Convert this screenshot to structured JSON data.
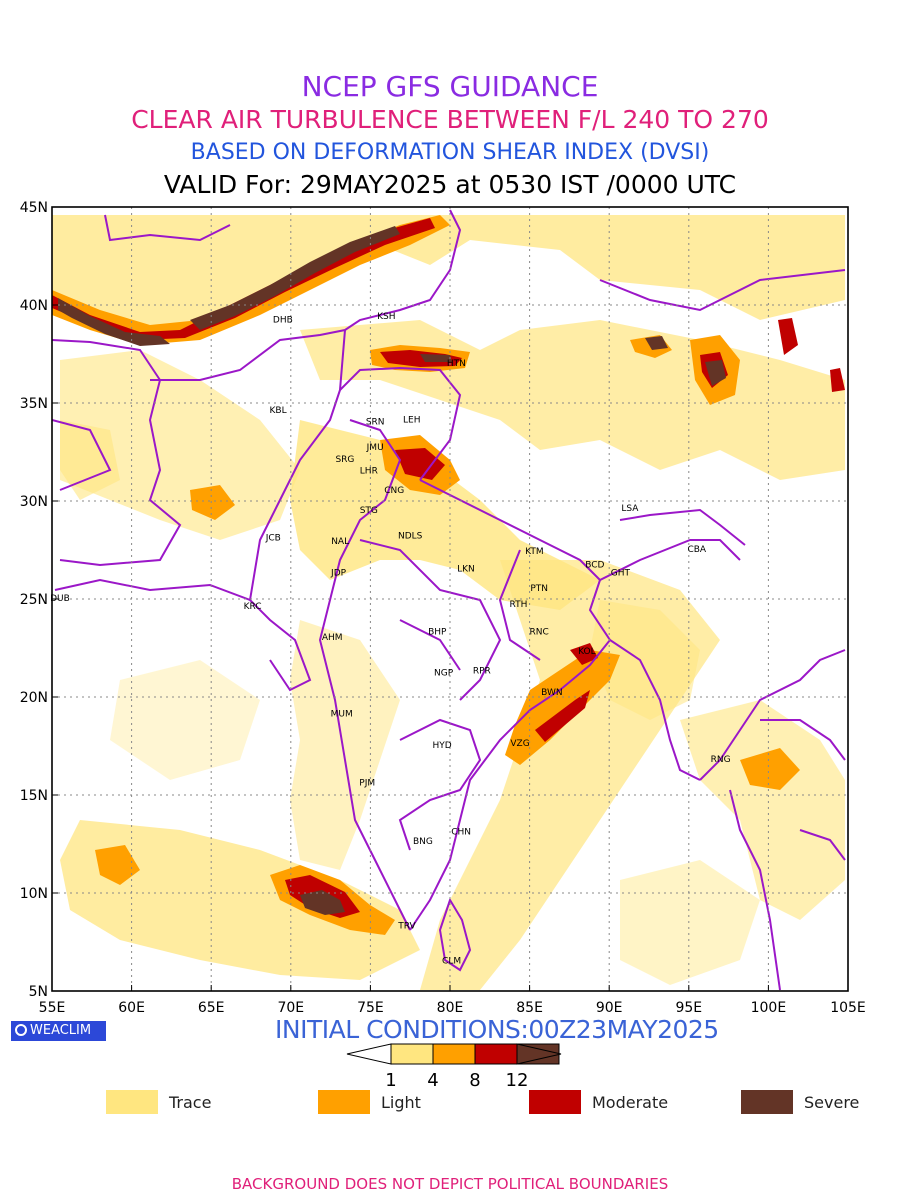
{
  "titles": {
    "line1": "NCEP GFS GUIDANCE",
    "line2": "CLEAR AIR TURBULENCE BETWEEN F/L 240 TO 270",
    "line3": "BASED ON DEFORMATION SHEAR INDEX (DVSI)",
    "line4": "VALID For: 29MAY2025 at 0530 IST /0000 UTC"
  },
  "map": {
    "lon_range": [
      55,
      105
    ],
    "lat_range": [
      5,
      45
    ],
    "x_ticks": [
      "55E",
      "60E",
      "65E",
      "70E",
      "75E",
      "80E",
      "85E",
      "90E",
      "95E",
      "100E",
      "105E"
    ],
    "y_ticks": [
      "45N",
      "40N",
      "35N",
      "30N",
      "25N",
      "20N",
      "15N",
      "10N",
      "5N"
    ],
    "grid": "dotted",
    "colors": {
      "trace": "#ffe680",
      "light": "#ffa000",
      "moderate": "#c00000",
      "severe": "#633426",
      "boundary": "#9b17c8"
    },
    "stations": [
      {
        "code": "DHB",
        "lon": 69.5,
        "lat": 39.3
      },
      {
        "code": "KSH",
        "lon": 76.0,
        "lat": 39.5
      },
      {
        "code": "HTN",
        "lon": 80.4,
        "lat": 37.1
      },
      {
        "code": "KBL",
        "lon": 69.2,
        "lat": 34.7
      },
      {
        "code": "SRN",
        "lon": 75.3,
        "lat": 34.1
      },
      {
        "code": "LEH",
        "lon": 77.6,
        "lat": 34.2
      },
      {
        "code": "JMU",
        "lon": 75.3,
        "lat": 32.8
      },
      {
        "code": "SRG",
        "lon": 73.4,
        "lat": 32.2
      },
      {
        "code": "LHR",
        "lon": 74.9,
        "lat": 31.6
      },
      {
        "code": "CNG",
        "lon": 76.5,
        "lat": 30.6
      },
      {
        "code": "LSA",
        "lon": 91.3,
        "lat": 29.7
      },
      {
        "code": "STG",
        "lon": 74.9,
        "lat": 29.6
      },
      {
        "code": "JCB",
        "lon": 68.9,
        "lat": 28.2
      },
      {
        "code": "NAL",
        "lon": 73.1,
        "lat": 28.0
      },
      {
        "code": "NDLS",
        "lon": 77.5,
        "lat": 28.3
      },
      {
        "code": "CBA",
        "lon": 95.5,
        "lat": 27.6
      },
      {
        "code": "KTM",
        "lon": 85.3,
        "lat": 27.5
      },
      {
        "code": "BCD",
        "lon": 89.1,
        "lat": 26.8
      },
      {
        "code": "LKN",
        "lon": 81.0,
        "lat": 26.6
      },
      {
        "code": "GHT",
        "lon": 90.7,
        "lat": 26.4
      },
      {
        "code": "JDP",
        "lon": 73.0,
        "lat": 26.4
      },
      {
        "code": "PTN",
        "lon": 85.6,
        "lat": 25.6
      },
      {
        "code": "DUB",
        "lon": 55.5,
        "lat": 25.1
      },
      {
        "code": "RTH",
        "lon": 84.3,
        "lat": 24.8
      },
      {
        "code": "KRC",
        "lon": 67.6,
        "lat": 24.7
      },
      {
        "code": "RNC",
        "lon": 85.6,
        "lat": 23.4
      },
      {
        "code": "AHM",
        "lon": 72.6,
        "lat": 23.1
      },
      {
        "code": "BHP",
        "lon": 79.2,
        "lat": 23.4
      },
      {
        "code": "KOL",
        "lon": 88.6,
        "lat": 22.4
      },
      {
        "code": "NGP",
        "lon": 79.6,
        "lat": 21.3
      },
      {
        "code": "RPR",
        "lon": 82.0,
        "lat": 21.4
      },
      {
        "code": "BWN",
        "lon": 86.4,
        "lat": 20.3
      },
      {
        "code": "MUM",
        "lon": 73.2,
        "lat": 19.2
      },
      {
        "code": "HYD",
        "lon": 79.5,
        "lat": 17.6
      },
      {
        "code": "VZG",
        "lon": 84.4,
        "lat": 17.7
      },
      {
        "code": "RNG",
        "lon": 97.0,
        "lat": 16.9
      },
      {
        "code": "PJM",
        "lon": 74.8,
        "lat": 15.7
      },
      {
        "code": "CHN",
        "lon": 80.7,
        "lat": 13.2
      },
      {
        "code": "BNG",
        "lon": 78.3,
        "lat": 12.7
      },
      {
        "code": "TRV",
        "lon": 77.3,
        "lat": 8.4
      },
      {
        "code": "CLM",
        "lon": 80.1,
        "lat": 6.6
      }
    ]
  },
  "brand": {
    "label": "WEACLIM"
  },
  "initial_conditions": "INITIAL CONDITIONS:00Z23MAY2025",
  "colorbar": {
    "ticks": [
      "1",
      "4",
      "8",
      "12"
    ],
    "colors": [
      "#ffe680",
      "#ffa000",
      "#c00000",
      "#633426"
    ]
  },
  "legend": [
    {
      "label": "Trace",
      "color": "#ffe680"
    },
    {
      "label": "Light",
      "color": "#ffa000"
    },
    {
      "label": "Moderate",
      "color": "#c00000"
    },
    {
      "label": "Severe",
      "color": "#633426"
    }
  ],
  "footer": "BACKGROUND DOES NOT DEPICT POLITICAL BOUNDARIES"
}
